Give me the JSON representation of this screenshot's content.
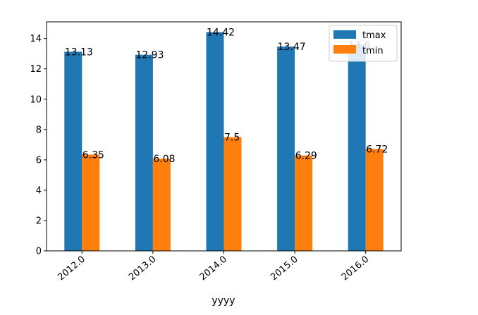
{
  "chart_data": {
    "type": "bar",
    "categories": [
      "2012.0",
      "2013.0",
      "2014.0",
      "2015.0",
      "2016.0"
    ],
    "series": [
      {
        "name": "tmax",
        "values": [
          13.13,
          12.93,
          14.42,
          13.47,
          13.6
        ],
        "labels": [
          "13.13",
          "12.93",
          "14.42",
          "13.47",
          "13.6"
        ],
        "color": "#1f77b4"
      },
      {
        "name": "tmin",
        "values": [
          6.35,
          6.08,
          7.5,
          6.29,
          6.72
        ],
        "labels": [
          "6.35",
          "6.08",
          "7.5",
          "6.29",
          "6.72"
        ],
        "color": "#ff7f0e"
      }
    ],
    "xlabel": "yyyy",
    "ylabel": "",
    "ylim": [
      0,
      15.1
    ],
    "yticks": [
      "0",
      "2",
      "4",
      "6",
      "8",
      "10",
      "12",
      "14"
    ],
    "grid": false,
    "legend_position": "top-right"
  }
}
